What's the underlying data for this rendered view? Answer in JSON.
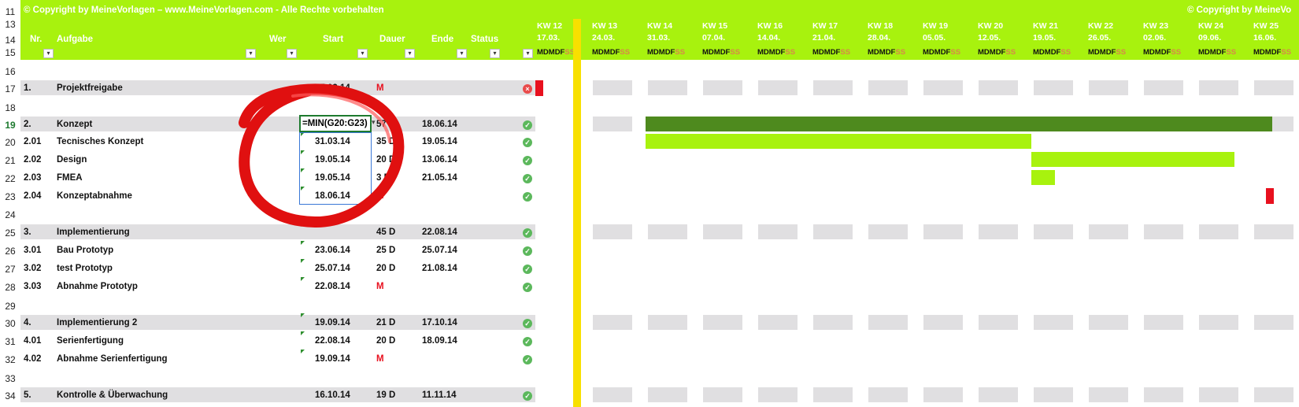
{
  "copyright": "© Copyright by MeineVorlagen – www.MeineVorlagen.com - Alle Rechte vorbehalten",
  "copyright_right": "© Copyright by MeineVo",
  "columns": {
    "nr": "Nr.",
    "task": "Aufgabe",
    "who": "Wer",
    "start": "Start",
    "duration": "Dauer",
    "end": "Ende",
    "status": "Status"
  },
  "rownums": [
    "11",
    "13",
    "14",
    "15",
    "16",
    "17",
    "18",
    "19",
    "20",
    "21",
    "22",
    "23",
    "24",
    "25",
    "26",
    "27",
    "28",
    "29",
    "30",
    "31",
    "32",
    "33",
    "34"
  ],
  "formula": "=MIN(G20:G23)",
  "weeks": [
    {
      "kw": "KW 12",
      "date": "17.03."
    },
    {
      "kw": "KW 13",
      "date": "24.03."
    },
    {
      "kw": "KW 14",
      "date": "31.03."
    },
    {
      "kw": "KW 15",
      "date": "07.04."
    },
    {
      "kw": "KW 16",
      "date": "14.04."
    },
    {
      "kw": "KW 17",
      "date": "21.04."
    },
    {
      "kw": "KW 18",
      "date": "28.04."
    },
    {
      "kw": "KW 19",
      "date": "05.05."
    },
    {
      "kw": "KW 20",
      "date": "12.05."
    },
    {
      "kw": "KW 21",
      "date": "19.05."
    },
    {
      "kw": "KW 22",
      "date": "26.05."
    },
    {
      "kw": "KW 23",
      "date": "02.06."
    },
    {
      "kw": "KW 24",
      "date": "09.06."
    },
    {
      "kw": "KW 25",
      "date": "16.06."
    }
  ],
  "weekday_letters": "MDMDF",
  "weekend_letters": "SS",
  "rows": [
    {
      "rownum": "17",
      "nr": "1.",
      "task": "Projektfreigabe",
      "start": "17.03.14",
      "duration": "M",
      "end": "",
      "status": "fail",
      "group": true
    },
    {
      "rownum": "19",
      "nr": "2.",
      "task": "Konzept",
      "start": "=MIN(G20:G23)",
      "duration": "57 D",
      "end": "18.06.14",
      "status": "ok",
      "group": true
    },
    {
      "rownum": "20",
      "nr": "2.01",
      "task": "Tecnisches Konzept",
      "start": "31.03.14",
      "duration": "35 D",
      "end": "19.05.14",
      "status": "ok",
      "group": false
    },
    {
      "rownum": "21",
      "nr": "2.02",
      "task": "Design",
      "start": "19.05.14",
      "duration": "20 D",
      "end": "13.06.14",
      "status": "ok",
      "group": false
    },
    {
      "rownum": "22",
      "nr": "2.03",
      "task": "FMEA",
      "start": "19.05.14",
      "duration": "3 D",
      "end": "21.05.14",
      "status": "ok",
      "group": false
    },
    {
      "rownum": "23",
      "nr": "2.04",
      "task": "Konzeptabnahme",
      "start": "18.06.14",
      "duration": "M",
      "end": "",
      "status": "ok",
      "group": false
    },
    {
      "rownum": "25",
      "nr": "3.",
      "task": "Implementierung",
      "start": "",
      "duration": "45 D",
      "end": "22.08.14",
      "status": "ok",
      "group": true
    },
    {
      "rownum": "26",
      "nr": "3.01",
      "task": "Bau Prototyp",
      "start": "23.06.14",
      "duration": "25 D",
      "end": "25.07.14",
      "status": "ok",
      "group": false
    },
    {
      "rownum": "27",
      "nr": "3.02",
      "task": "test Prototyp",
      "start": "25.07.14",
      "duration": "20 D",
      "end": "21.08.14",
      "status": "ok",
      "group": false
    },
    {
      "rownum": "28",
      "nr": "3.03",
      "task": "Abnahme Prototyp",
      "start": "22.08.14",
      "duration": "M",
      "end": "",
      "status": "ok",
      "group": false
    },
    {
      "rownum": "30",
      "nr": "4.",
      "task": "Implementierung 2",
      "start": "19.09.14",
      "duration": "21 D",
      "end": "17.10.14",
      "status": "ok",
      "group": true
    },
    {
      "rownum": "31",
      "nr": "4.01",
      "task": "Serienfertigung",
      "start": "22.08.14",
      "duration": "20 D",
      "end": "18.09.14",
      "status": "ok",
      "group": false
    },
    {
      "rownum": "32",
      "nr": "4.02",
      "task": "Abnahme Serienfertigung",
      "start": "19.09.14",
      "duration": "M",
      "end": "",
      "status": "ok",
      "group": false
    },
    {
      "rownum": "34",
      "nr": "5.",
      "task": "Kontrolle & Überwachung",
      "start": "16.10.14",
      "duration": "19 D",
      "end": "11.11.14",
      "status": "ok",
      "group": true
    }
  ],
  "colors": {
    "header_green": "#a8f20e",
    "bar_dark": "#4e8a1e",
    "bar_light": "#a8f20e",
    "milestone": "#e8101e",
    "today_line": "#f8e000",
    "group_bar": "#e0dfe1",
    "highlight_circle": "#e01010"
  }
}
